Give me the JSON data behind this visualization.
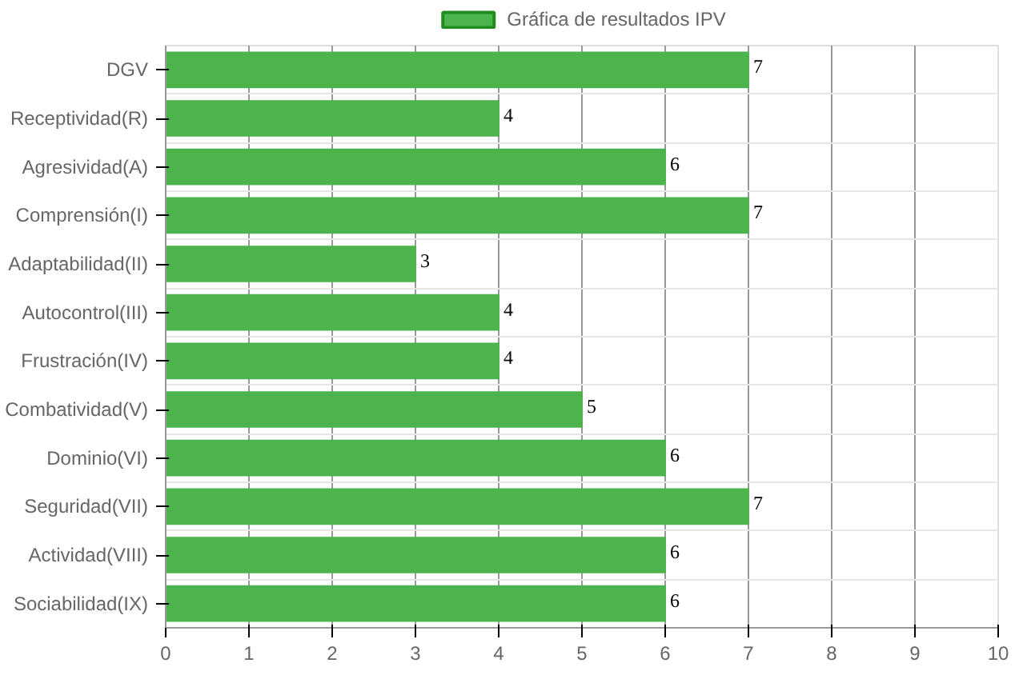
{
  "chart_data": {
    "type": "bar",
    "orientation": "horizontal",
    "categories": [
      "DGV",
      "Receptividad(R)",
      "Agresividad(A)",
      "Comprensión(I)",
      "Adaptabilidad(II)",
      "Autocontrol(III)",
      "Frustración(IV)",
      "Combatividad(V)",
      "Dominio(VI)",
      "Seguridad(VII)",
      "Actividad(VIII)",
      "Sociabilidad(IX)"
    ],
    "series": [
      {
        "name": "Gráfica de resultados IPV",
        "color": "#4db34d",
        "values": [
          7,
          4,
          6,
          7,
          3,
          4,
          4,
          5,
          6,
          7,
          6,
          6
        ]
      }
    ],
    "xlim": [
      0,
      10
    ],
    "xticks": [
      0,
      1,
      2,
      3,
      4,
      5,
      6,
      7,
      8,
      9,
      10
    ],
    "grid": true,
    "legend": "top",
    "data_labels": true
  }
}
